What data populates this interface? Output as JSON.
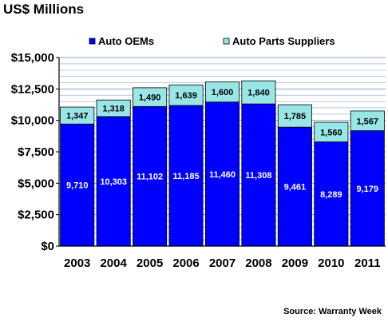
{
  "chart_data": {
    "type": "bar",
    "stacked": true,
    "title": "US$ Millions",
    "categories": [
      "2003",
      "2004",
      "2005",
      "2006",
      "2007",
      "2008",
      "2009",
      "2010",
      "2011"
    ],
    "series": [
      {
        "name": "Auto OEMs",
        "color": "#0000FF",
        "values": [
          9710,
          10303,
          11102,
          11185,
          11460,
          11308,
          9461,
          8289,
          9179
        ],
        "labels": [
          "9,710",
          "10,303",
          "11,102",
          "11,185",
          "11,460",
          "11,308",
          "9,461",
          "8,289",
          "9,179"
        ]
      },
      {
        "name": "Auto Parts Suppliers",
        "color": "#99E6E6",
        "values": [
          1347,
          1318,
          1490,
          1639,
          1600,
          1840,
          1785,
          1560,
          1567
        ],
        "labels": [
          "1,347",
          "1,318",
          "1,490",
          "1,639",
          "1,600",
          "1,840",
          "1,785",
          "1,560",
          "1,567"
        ]
      }
    ],
    "ylim": [
      0,
      15000
    ],
    "yticks": [
      0,
      2500,
      5000,
      7500,
      10000,
      12500,
      15000
    ],
    "ytick_labels": [
      "$0",
      "$2,500",
      "$5,000",
      "$7,500",
      "$10,000",
      "$12,500",
      "$15,000"
    ],
    "grid": true,
    "legend_position": "top",
    "source": "Source: Warranty Week"
  }
}
